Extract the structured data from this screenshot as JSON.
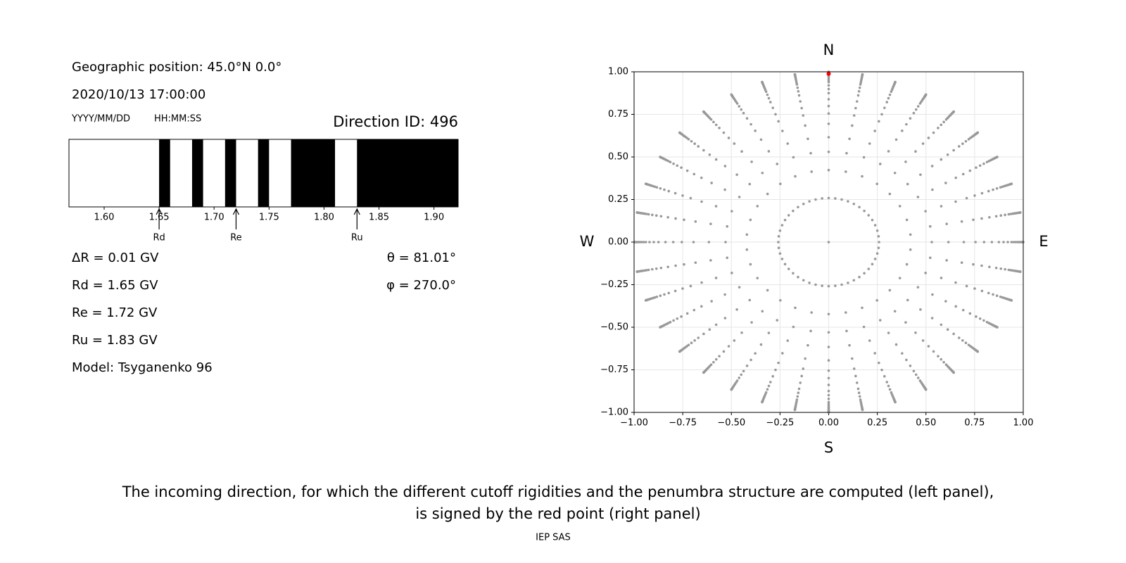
{
  "header": {
    "position": "Geographic position: 45.0°N 0.0°",
    "datetime": "2020/10/13 17:00:00",
    "date_format": "YYYY/MM/DD",
    "time_format": "HH:MM:SS",
    "direction_id": "Direction ID: 496"
  },
  "results": [
    "ΔR = 0.01 GV",
    "Rd = 1.65 GV",
    "Re = 1.72 GV",
    "Ru = 1.83 GV",
    "Model: Tsyganenko 96"
  ],
  "angles": [
    "θ = 81.01°",
    "φ = 270.0°"
  ],
  "chart_data": [
    {
      "type": "penumbra",
      "xlim": [
        1.568,
        1.922
      ],
      "xticks": [
        {
          "value": 1.6,
          "label": "1.60"
        },
        {
          "value": 1.65,
          "label": "1.65"
        },
        {
          "value": 1.7,
          "label": "1.70"
        },
        {
          "value": 1.75,
          "label": "1.75"
        },
        {
          "value": 1.8,
          "label": "1.80"
        },
        {
          "value": 1.85,
          "label": "1.85"
        },
        {
          "value": 1.9,
          "label": "1.90"
        }
      ],
      "allowed_bands": [
        [
          1.65,
          1.66
        ],
        [
          1.68,
          1.69
        ],
        [
          1.71,
          1.72
        ],
        [
          1.74,
          1.75
        ],
        [
          1.77,
          1.81
        ],
        [
          1.83,
          1.922
        ]
      ],
      "color": "#000000",
      "markers": [
        {
          "name": "Rd",
          "value": 1.65
        },
        {
          "name": "Re",
          "value": 1.72
        },
        {
          "name": "Ru",
          "value": 1.83
        }
      ]
    },
    {
      "type": "scatter",
      "xlim": [
        -1,
        1
      ],
      "ylim": [
        -1,
        1
      ],
      "xticks": [
        {
          "value": -1,
          "label": "−1.00"
        },
        {
          "value": -0.75,
          "label": "−0.75"
        },
        {
          "value": -0.5,
          "label": "−0.50"
        },
        {
          "value": -0.25,
          "label": "−0.25"
        },
        {
          "value": 0,
          "label": "0.00"
        },
        {
          "value": 0.25,
          "label": "0.25"
        },
        {
          "value": 0.5,
          "label": "0.50"
        },
        {
          "value": 0.75,
          "label": "0.75"
        },
        {
          "value": 1,
          "label": "1.00"
        }
      ],
      "yticks": [
        {
          "value": -1,
          "label": "−1.00"
        },
        {
          "value": -0.75,
          "label": "−0.75"
        },
        {
          "value": -0.5,
          "label": "−0.50"
        },
        {
          "value": -0.25,
          "label": "−0.25"
        },
        {
          "value": 0,
          "label": "0.00"
        },
        {
          "value": 0.25,
          "label": "0.25"
        },
        {
          "value": 0.5,
          "label": "0.50"
        },
        {
          "value": 0.75,
          "label": "0.75"
        },
        {
          "value": 1,
          "label": "1.00"
        }
      ],
      "grid": true,
      "compass": {
        "north": "N",
        "south": "S",
        "west": "W",
        "east": "E"
      },
      "grid_zenith_deg": [
        0,
        15,
        25,
        32,
        38,
        44,
        49,
        53,
        57,
        61,
        64,
        67,
        70,
        72,
        74,
        76,
        78,
        80,
        82,
        84,
        86,
        88,
        90
      ],
      "grid_azimuth_step_deg": [
        360,
        7.5,
        12,
        10,
        10,
        10,
        10,
        10,
        10,
        10,
        10,
        10,
        10,
        10,
        10,
        10,
        10,
        10,
        10,
        10,
        10,
        10,
        10
      ],
      "color": "#999999",
      "selected": {
        "x": 0,
        "y": 0.988,
        "color": "#ff0000"
      }
    }
  ],
  "caption": [
    "The incoming direction, for which the different cutoff rigidities and the penumbra structure are computed (left panel),",
    "is signed by the red point (right panel)"
  ],
  "footer": "IEP SAS"
}
